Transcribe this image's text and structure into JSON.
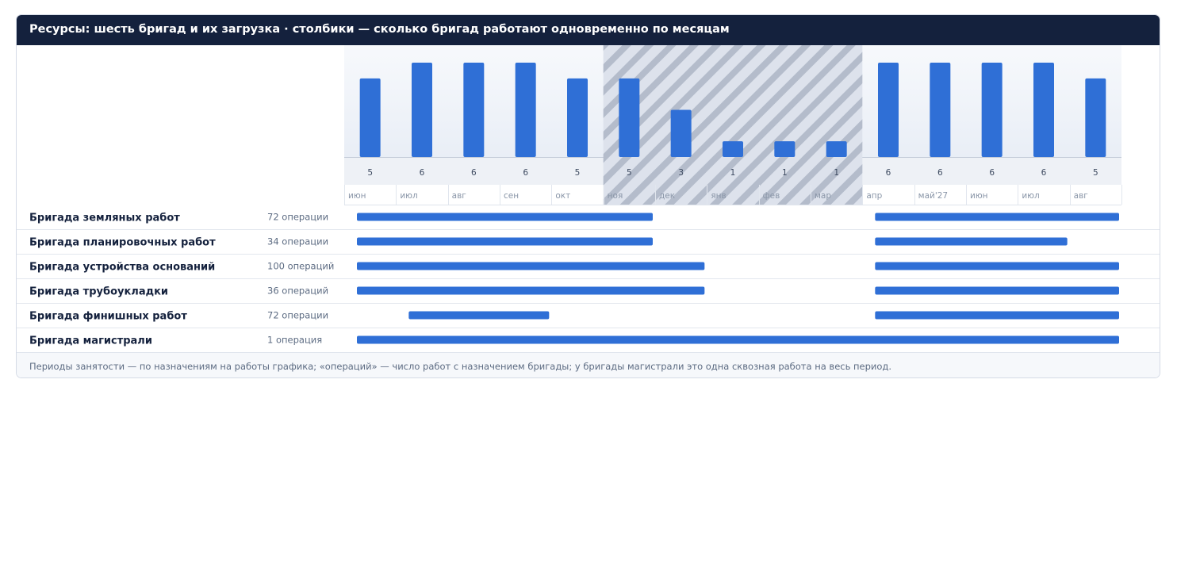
{
  "title": "Ресурсы: шесть бригад и их загрузка · столбики — сколько бригад работают одновременно по месяцам",
  "footnote": "Периоды занятости — по назначениям на работы графика; «операций» — число работ с назначением бригады; у бригады магистрали это одна сквозная работа на весь период.",
  "colors": {
    "header_bg": "#14213d",
    "bar": "#2f6fd6",
    "hatch_bg": "#dde2ec",
    "hatch_stripe": "#b4bccb",
    "text_dark": "#14213d",
    "text_muted": "#5c6b82"
  },
  "chart_data": {
    "type": "bar",
    "months": [
      "июн",
      "июл",
      "авг",
      "сен",
      "окт",
      "ноя",
      "дек",
      "янв",
      "фев",
      "мар",
      "апр",
      "май'27",
      "июн",
      "июл",
      "авг"
    ],
    "active_crews": [
      5,
      6,
      6,
      6,
      5,
      5,
      3,
      1,
      1,
      1,
      6,
      6,
      6,
      6,
      5
    ],
    "ylim": [
      0,
      6
    ],
    "hatched_period": {
      "from": "ноя",
      "to": "мар"
    }
  },
  "crews": [
    {
      "name": "Бригада земляных работ",
      "ops": "72 операции",
      "periods": [
        [
          0,
          6
        ],
        [
          10,
          15
        ]
      ]
    },
    {
      "name": "Бригада планировочных работ",
      "ops": "34 операции",
      "periods": [
        [
          0,
          6
        ],
        [
          10,
          14
        ]
      ]
    },
    {
      "name": "Бригада устройства оснований",
      "ops": "100 операций",
      "periods": [
        [
          0,
          7
        ],
        [
          10,
          15
        ]
      ]
    },
    {
      "name": "Бригада трубоукладки",
      "ops": "36 операций",
      "periods": [
        [
          0,
          7
        ],
        [
          10,
          15
        ]
      ]
    },
    {
      "name": "Бригада финишных работ",
      "ops": "72 операции",
      "periods": [
        [
          1,
          4
        ],
        [
          10,
          15
        ]
      ]
    },
    {
      "name": "Бригада магистрали",
      "ops": "1 операция",
      "periods": [
        [
          0,
          15
        ]
      ]
    }
  ]
}
